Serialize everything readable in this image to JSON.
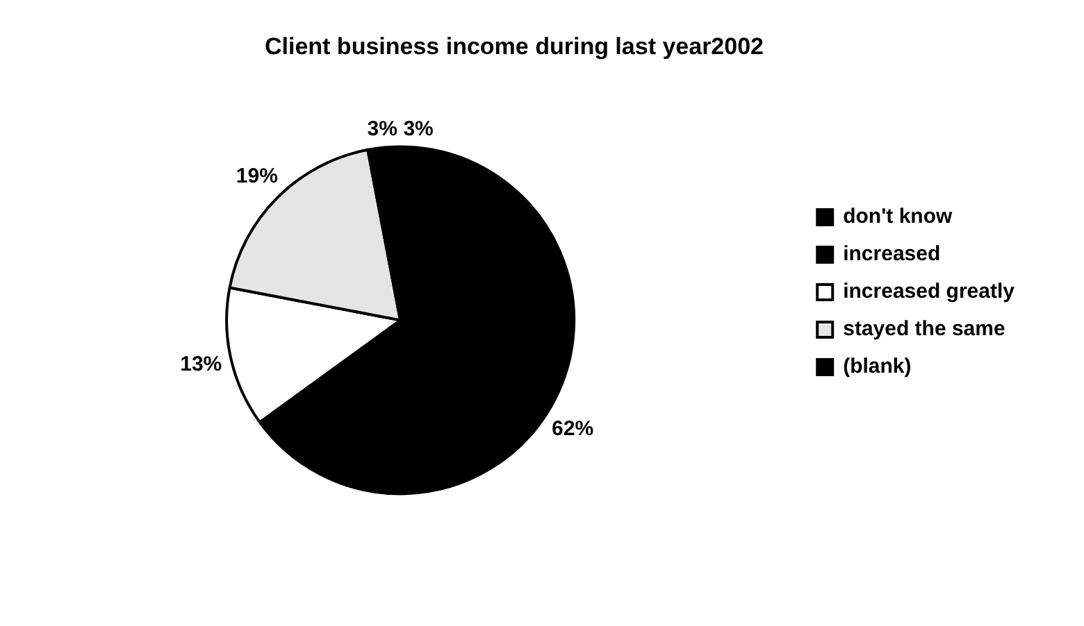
{
  "chart_data": {
    "type": "pie",
    "title": "Client business income during last year2002",
    "categories": [
      "don't know",
      "increased",
      "increased greatly",
      "stayed the same",
      "(blank)"
    ],
    "values": [
      3,
      62,
      13,
      19,
      3
    ],
    "colors": [
      "#000000",
      "#000000",
      "#ffffff",
      "#e4e4e4",
      "#000000"
    ],
    "value_labels": [
      "3%",
      "62%",
      "13%",
      "19%",
      "3%"
    ],
    "legend": "right"
  }
}
